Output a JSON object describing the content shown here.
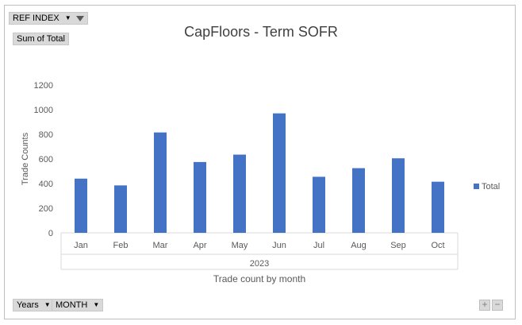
{
  "filter_button": {
    "label": "REF INDEX",
    "icon": "filter-icon"
  },
  "value_button": {
    "label": "Sum of Total"
  },
  "axis_buttons": [
    {
      "label": "Years"
    },
    {
      "label": "MONTH"
    }
  ],
  "zoom": {
    "plus": "+",
    "minus": "−"
  },
  "chart_data": {
    "type": "bar",
    "title": "CapFloors - Term SOFR",
    "xlabel": "Trade count by month",
    "ylabel": "Trade Counts",
    "categories": [
      "Jan",
      "Feb",
      "Mar",
      "Apr",
      "May",
      "Jun",
      "Jul",
      "Aug",
      "Sep",
      "Oct"
    ],
    "group_label": "2023",
    "series": [
      {
        "name": "Total",
        "color": "#4472c4",
        "values": [
          440,
          385,
          815,
          575,
          635,
          970,
          455,
          525,
          605,
          415
        ]
      }
    ],
    "ylim": [
      0,
      1200
    ],
    "yticks": [
      0,
      200,
      400,
      600,
      800,
      1000,
      1200
    ],
    "grid": false,
    "legend": "right"
  }
}
